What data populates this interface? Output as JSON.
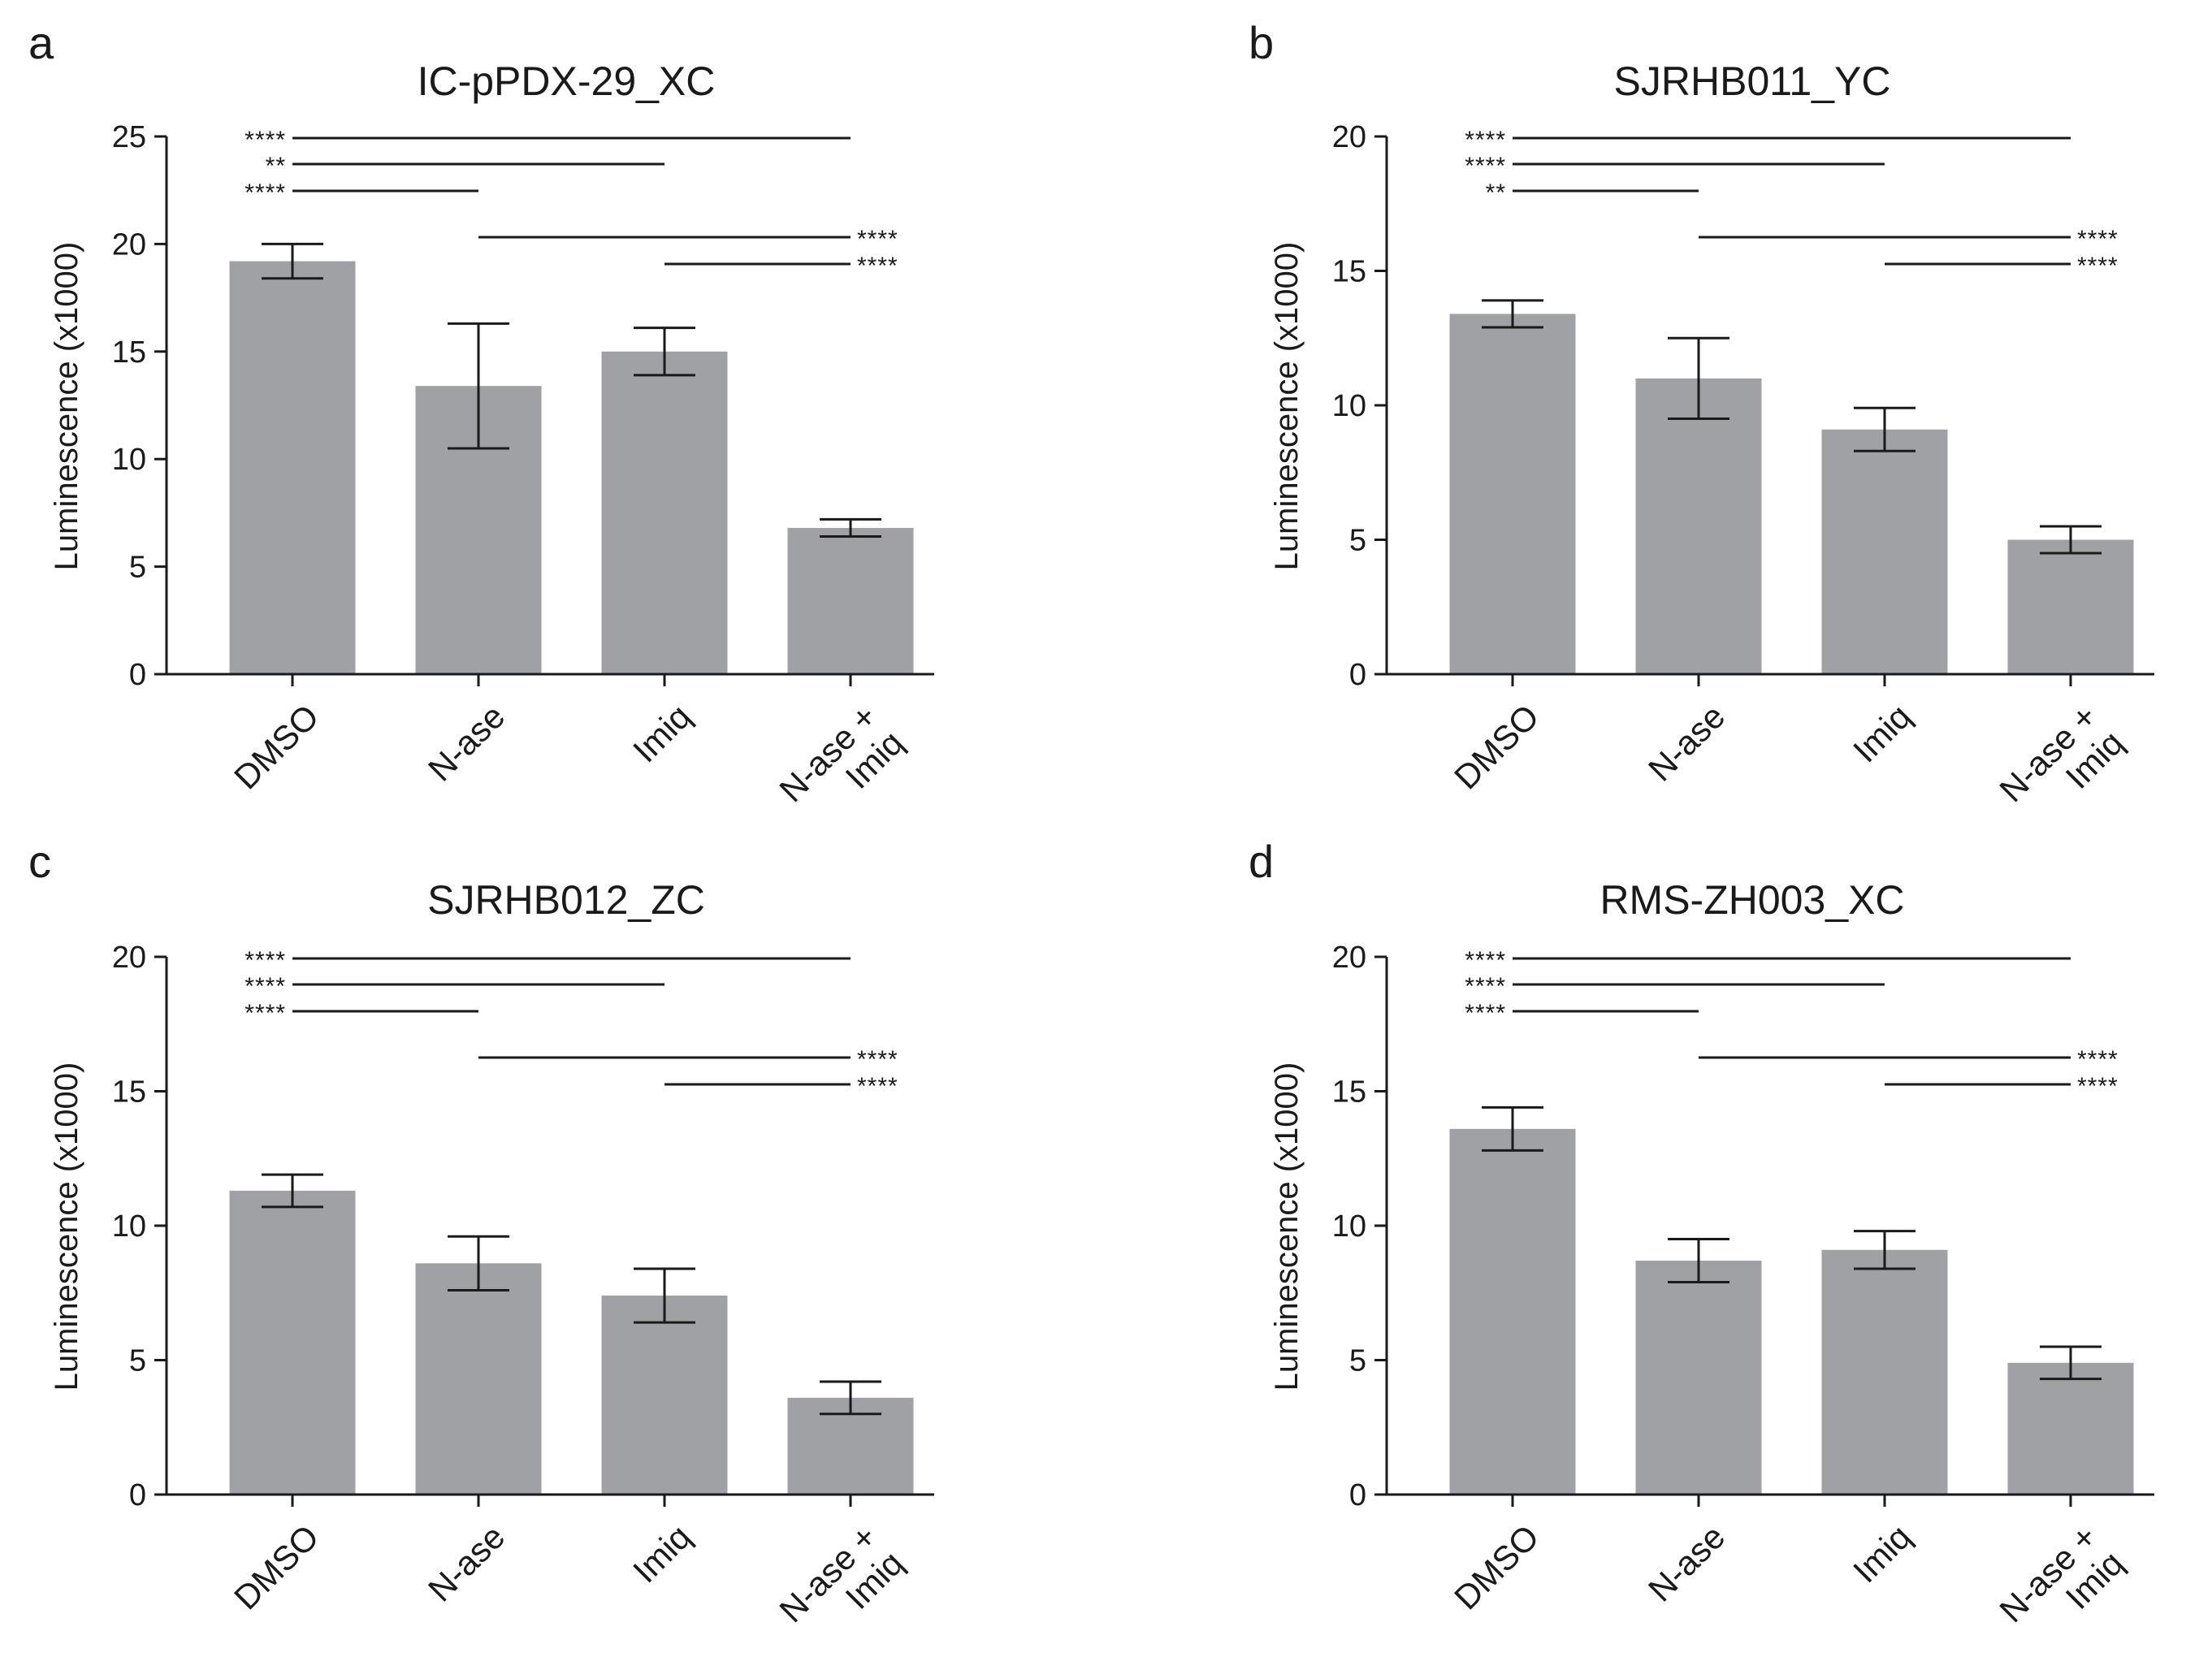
{
  "panels": [
    {
      "letter": "a",
      "chart_data": {
        "type": "bar",
        "title": "IC-pPDX-29_XC",
        "ylabel": "Luminescence (x1000)",
        "xlabel": "",
        "categories": [
          "DMSO",
          "N-ase",
          "Imiq",
          "N-ase + Imiq"
        ],
        "category_lines": [
          [
            "DMSO"
          ],
          [
            "N-ase"
          ],
          [
            "Imiq"
          ],
          [
            "N-ase +",
            "Imiq"
          ]
        ],
        "values": [
          19.2,
          13.4,
          15.0,
          6.8
        ],
        "error": [
          0.8,
          2.9,
          1.1,
          0.4
        ],
        "ylim": [
          0,
          25
        ],
        "yticks": [
          0,
          5,
          10,
          15,
          20,
          25
        ],
        "grid": false,
        "bar_color": "#a0a1a4",
        "significance": [
          {
            "from": 0,
            "to": 3,
            "label": "****",
            "label_side": "left"
          },
          {
            "from": 0,
            "to": 2,
            "label": "**",
            "label_side": "left"
          },
          {
            "from": 0,
            "to": 1,
            "label": "****",
            "label_side": "left"
          },
          {
            "from": 1,
            "to": 3,
            "label": "****",
            "label_side": "right"
          },
          {
            "from": 2,
            "to": 3,
            "label": "****",
            "label_side": "right"
          }
        ]
      }
    },
    {
      "letter": "b",
      "chart_data": {
        "type": "bar",
        "title": "SJRHB011_YC",
        "ylabel": "Luminescence (x1000)",
        "xlabel": "",
        "categories": [
          "DMSO",
          "N-ase",
          "Imiq",
          "N-ase + Imiq"
        ],
        "category_lines": [
          [
            "DMSO"
          ],
          [
            "N-ase"
          ],
          [
            "Imiq"
          ],
          [
            "N-ase +",
            "Imiq"
          ]
        ],
        "values": [
          13.4,
          11.0,
          9.1,
          5.0
        ],
        "error": [
          0.5,
          1.5,
          0.8,
          0.5
        ],
        "ylim": [
          0,
          20
        ],
        "yticks": [
          0,
          5,
          10,
          15,
          20
        ],
        "grid": false,
        "bar_color": "#a0a1a4",
        "significance": [
          {
            "from": 0,
            "to": 3,
            "label": "****",
            "label_side": "left"
          },
          {
            "from": 0,
            "to": 2,
            "label": "****",
            "label_side": "left"
          },
          {
            "from": 0,
            "to": 1,
            "label": "**",
            "label_side": "left"
          },
          {
            "from": 1,
            "to": 3,
            "label": "****",
            "label_side": "right"
          },
          {
            "from": 2,
            "to": 3,
            "label": "****",
            "label_side": "right"
          }
        ]
      }
    },
    {
      "letter": "c",
      "chart_data": {
        "type": "bar",
        "title": "SJRHB012_ZC",
        "ylabel": "Luminescence (x1000)",
        "xlabel": "",
        "categories": [
          "DMSO",
          "N-ase",
          "Imiq",
          "N-ase + Imiq"
        ],
        "category_lines": [
          [
            "DMSO"
          ],
          [
            "N-ase"
          ],
          [
            "Imiq"
          ],
          [
            "N-ase +",
            "Imiq"
          ]
        ],
        "values": [
          11.3,
          8.6,
          7.4,
          3.6
        ],
        "error": [
          0.6,
          1.0,
          1.0,
          0.6
        ],
        "ylim": [
          0,
          20
        ],
        "yticks": [
          0,
          5,
          10,
          15,
          20
        ],
        "grid": false,
        "bar_color": "#a0a1a4",
        "significance": [
          {
            "from": 0,
            "to": 3,
            "label": "****",
            "label_side": "left"
          },
          {
            "from": 0,
            "to": 2,
            "label": "****",
            "label_side": "left"
          },
          {
            "from": 0,
            "to": 1,
            "label": "****",
            "label_side": "left"
          },
          {
            "from": 1,
            "to": 3,
            "label": "****",
            "label_side": "right"
          },
          {
            "from": 2,
            "to": 3,
            "label": "****",
            "label_side": "right"
          }
        ]
      }
    },
    {
      "letter": "d",
      "chart_data": {
        "type": "bar",
        "title": "RMS-ZH003_XC",
        "ylabel": "Luminescence (x1000)",
        "xlabel": "",
        "categories": [
          "DMSO",
          "N-ase",
          "Imiq",
          "N-ase + Imiq"
        ],
        "category_lines": [
          [
            "DMSO"
          ],
          [
            "N-ase"
          ],
          [
            "Imiq"
          ],
          [
            "N-ase +",
            "Imiq"
          ]
        ],
        "values": [
          13.6,
          8.7,
          9.1,
          4.9
        ],
        "error": [
          0.8,
          0.8,
          0.7,
          0.6
        ],
        "ylim": [
          0,
          20
        ],
        "yticks": [
          0,
          5,
          10,
          15,
          20
        ],
        "grid": false,
        "bar_color": "#a0a1a4",
        "significance": [
          {
            "from": 0,
            "to": 3,
            "label": "****",
            "label_side": "left"
          },
          {
            "from": 0,
            "to": 2,
            "label": "****",
            "label_side": "left"
          },
          {
            "from": 0,
            "to": 1,
            "label": "****",
            "label_side": "left"
          },
          {
            "from": 1,
            "to": 3,
            "label": "****",
            "label_side": "right"
          },
          {
            "from": 2,
            "to": 3,
            "label": "****",
            "label_side": "right"
          }
        ]
      }
    }
  ]
}
